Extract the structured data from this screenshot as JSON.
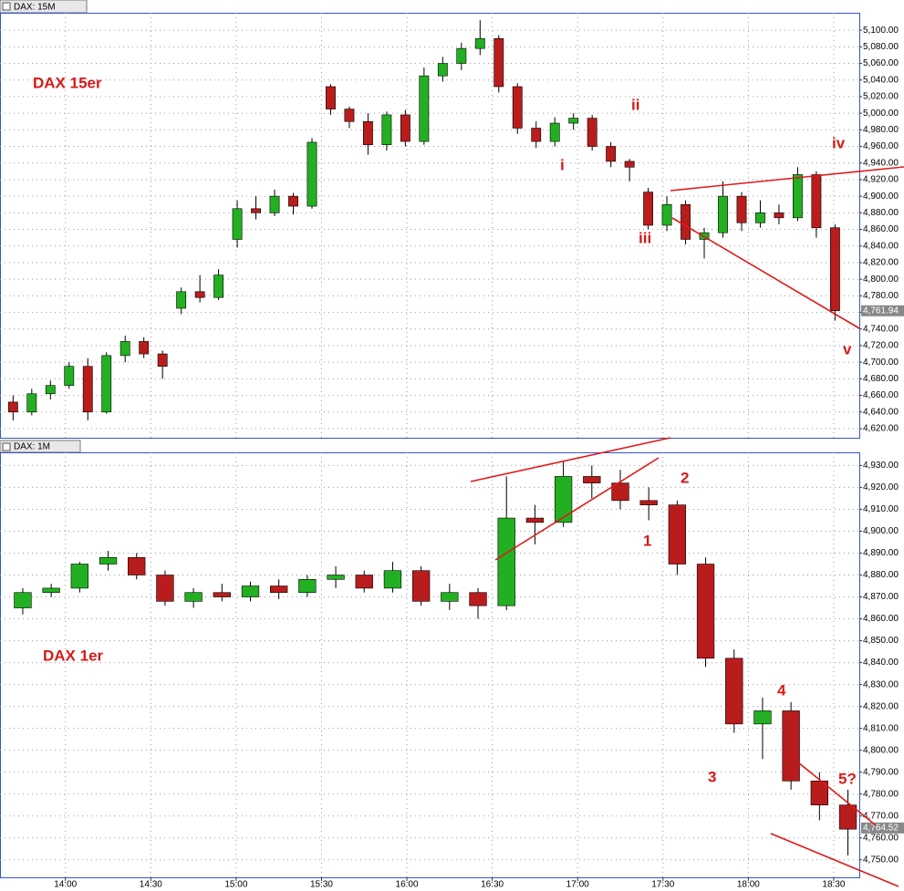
{
  "chart_data": [
    {
      "type": "candlestick",
      "title": "DAX: 15M",
      "annotations": [
        "DAX 15er",
        "i",
        "ii",
        "iii",
        "iv",
        "v"
      ],
      "open": [
        4652,
        4640,
        4662,
        4672,
        4695,
        4640,
        4708,
        4725,
        4710,
        4765,
        4785,
        4778,
        4848,
        4885,
        4880,
        4900,
        4888,
        5032,
        5005,
        4990,
        4962,
        4998,
        4966,
        5045,
        5060,
        5078,
        5090,
        5032,
        4982,
        4966,
        4988,
        4994,
        4960,
        4942,
        4905,
        4865,
        4890,
        4848,
        4856,
        4900,
        4868,
        4880,
        4874,
        4926,
        4862
      ],
      "high": [
        4660,
        4668,
        4678,
        4700,
        4705,
        4712,
        4732,
        4730,
        4714,
        4790,
        4805,
        4812,
        4895,
        4900,
        4908,
        4904,
        4970,
        5035,
        5008,
        5000,
        5002,
        5004,
        5055,
        5068,
        5085,
        5112,
        5094,
        5036,
        4990,
        4995,
        5000,
        4998,
        4965,
        4945,
        4910,
        4900,
        4895,
        4862,
        4918,
        4905,
        4895,
        4890,
        4935,
        4930,
        4866
      ],
      "low": [
        4630,
        4636,
        4655,
        4668,
        4630,
        4638,
        4700,
        4705,
        4680,
        4758,
        4772,
        4775,
        4838,
        4872,
        4876,
        4878,
        4885,
        4998,
        4982,
        4950,
        4955,
        4960,
        4962,
        5038,
        5052,
        5070,
        5025,
        4975,
        4958,
        4960,
        4980,
        4955,
        4935,
        4918,
        4860,
        4858,
        4842,
        4825,
        4850,
        4858,
        4862,
        4866,
        4870,
        4850,
        4750
      ],
      "close": [
        4640,
        4662,
        4672,
        4695,
        4640,
        4708,
        4725,
        4710,
        4695,
        4785,
        4778,
        4805,
        4885,
        4880,
        4900,
        4888,
        4965,
        5005,
        4990,
        4962,
        4998,
        4966,
        5045,
        5060,
        5078,
        5090,
        5032,
        4982,
        4966,
        4988,
        4994,
        4960,
        4942,
        4935,
        4865,
        4890,
        4848,
        4856,
        4900,
        4868,
        4880,
        4874,
        4926,
        4862,
        4762
      ],
      "last": {
        "value": 4761.94,
        "label": "4,761.94"
      },
      "up_color": "#22b022",
      "down_color": "#b81c1c",
      "ylim": [
        4609,
        5121
      ],
      "yticks": [
        {
          "value": 4620,
          "label": "4,620.00"
        },
        {
          "value": 4640,
          "label": "4,640.00"
        },
        {
          "value": 4660,
          "label": "4,660.00"
        },
        {
          "value": 4680,
          "label": "4,680.00"
        },
        {
          "value": 4700,
          "label": "4,700.00"
        },
        {
          "value": 4720,
          "label": "4,720.00"
        },
        {
          "value": 4740,
          "label": "4,740.00"
        },
        {
          "value": 4760,
          "label": "4,760.00"
        },
        {
          "value": 4780,
          "label": "4,780.00"
        },
        {
          "value": 4800,
          "label": "4,800.00"
        },
        {
          "value": 4820,
          "label": "4,820.00"
        },
        {
          "value": 4840,
          "label": "4,840.00"
        },
        {
          "value": 4860,
          "label": "4,860.00"
        },
        {
          "value": 4880,
          "label": "4,880.00"
        },
        {
          "value": 4900,
          "label": "4,900.00"
        },
        {
          "value": 4920,
          "label": "4,920.00"
        },
        {
          "value": 4940,
          "label": "4,940.00"
        },
        {
          "value": 4960,
          "label": "4,960.00"
        },
        {
          "value": 4980,
          "label": "4,980.00"
        },
        {
          "value": 5000,
          "label": "5,000.00"
        },
        {
          "value": 5020,
          "label": "5,020.00"
        },
        {
          "value": 5040,
          "label": "5,040.00"
        },
        {
          "value": 5060,
          "label": "5,060.00"
        },
        {
          "value": 5080,
          "label": "5,080.00"
        },
        {
          "value": 5100,
          "label": "5,100.00"
        }
      ],
      "grid": true
    },
    {
      "type": "candlestick",
      "title": "DAX: 1M",
      "annotations": [
        "DAX 1er",
        "1",
        "2",
        "3",
        "4",
        "5?"
      ],
      "x": [
        820,
        830,
        840,
        850,
        860,
        870,
        880,
        890,
        900,
        910,
        920,
        930,
        940,
        950,
        960,
        970,
        980,
        990,
        1000,
        1010,
        1020,
        1030,
        1040,
        1050,
        1060,
        1070,
        1080,
        1090,
        1100,
        1110
      ],
      "open": [
        4865,
        4872,
        4874,
        4885,
        4888,
        4880,
        4868,
        4872,
        4870,
        4875,
        4872,
        4878,
        4880,
        4874,
        4882,
        4868,
        4872,
        4866,
        4906,
        4904,
        4925,
        4922,
        4914,
        4912,
        4885,
        4842,
        4812,
        4818,
        4786,
        4775
      ],
      "high": [
        4874,
        4876,
        4886,
        4891,
        4890,
        4882,
        4874,
        4876,
        4877,
        4878,
        4880,
        4884,
        4882,
        4886,
        4884,
        4876,
        4874,
        4925,
        4912,
        4932,
        4930,
        4928,
        4920,
        4914,
        4888,
        4846,
        4824,
        4822,
        4790,
        4782
      ],
      "low": [
        4862,
        4870,
        4872,
        4882,
        4878,
        4866,
        4865,
        4868,
        4868,
        4869,
        4870,
        4874,
        4872,
        4872,
        4866,
        4864,
        4860,
        4864,
        4894,
        4902,
        4915,
        4910,
        4905,
        4880,
        4838,
        4808,
        4796,
        4782,
        4768,
        4752
      ],
      "close": [
        4872,
        4874,
        4885,
        4888,
        4880,
        4868,
        4872,
        4870,
        4875,
        4872,
        4878,
        4880,
        4874,
        4882,
        4868,
        4872,
        4866,
        4906,
        4904,
        4925,
        4922,
        4914,
        4912,
        4885,
        4842,
        4812,
        4818,
        4786,
        4775,
        4764
      ],
      "last": {
        "value": 4764.52,
        "label": "4,764.52"
      },
      "up_color": "#22b022",
      "down_color": "#b81c1c",
      "xlim": [
        817,
        1119
      ],
      "xticks": [
        {
          "value": 840,
          "label": "14:00"
        },
        {
          "value": 870,
          "label": "14:30"
        },
        {
          "value": 900,
          "label": "15:00"
        },
        {
          "value": 930,
          "label": "15:30"
        },
        {
          "value": 960,
          "label": "16:00"
        },
        {
          "value": 990,
          "label": "16:30"
        },
        {
          "value": 1020,
          "label": "17:00"
        },
        {
          "value": 1050,
          "label": "17:30"
        },
        {
          "value": 1080,
          "label": "18:00"
        },
        {
          "value": 1110,
          "label": "18:30"
        }
      ],
      "ylim": [
        4742,
        4936
      ],
      "yticks": [
        {
          "value": 4750,
          "label": "4,750.00"
        },
        {
          "value": 4760,
          "label": "4,760.00"
        },
        {
          "value": 4770,
          "label": "4,770.00"
        },
        {
          "value": 4780,
          "label": "4,780.00"
        },
        {
          "value": 4790,
          "label": "4,790.00"
        },
        {
          "value": 4800,
          "label": "4,800.00"
        },
        {
          "value": 4810,
          "label": "4,810.00"
        },
        {
          "value": 4820,
          "label": "4,820.00"
        },
        {
          "value": 4830,
          "label": "4,830.00"
        },
        {
          "value": 4840,
          "label": "4,840.00"
        },
        {
          "value": 4850,
          "label": "4,850.00"
        },
        {
          "value": 4860,
          "label": "4,860.00"
        },
        {
          "value": 4870,
          "label": "4,870.00"
        },
        {
          "value": 4880,
          "label": "4,880.00"
        },
        {
          "value": 4890,
          "label": "4,890.00"
        },
        {
          "value": 4900,
          "label": "4,900.00"
        },
        {
          "value": 4910,
          "label": "4,910.00"
        },
        {
          "value": 4920,
          "label": "4,920.00"
        },
        {
          "value": 4930,
          "label": "4,930.00"
        }
      ],
      "grid": true
    }
  ]
}
